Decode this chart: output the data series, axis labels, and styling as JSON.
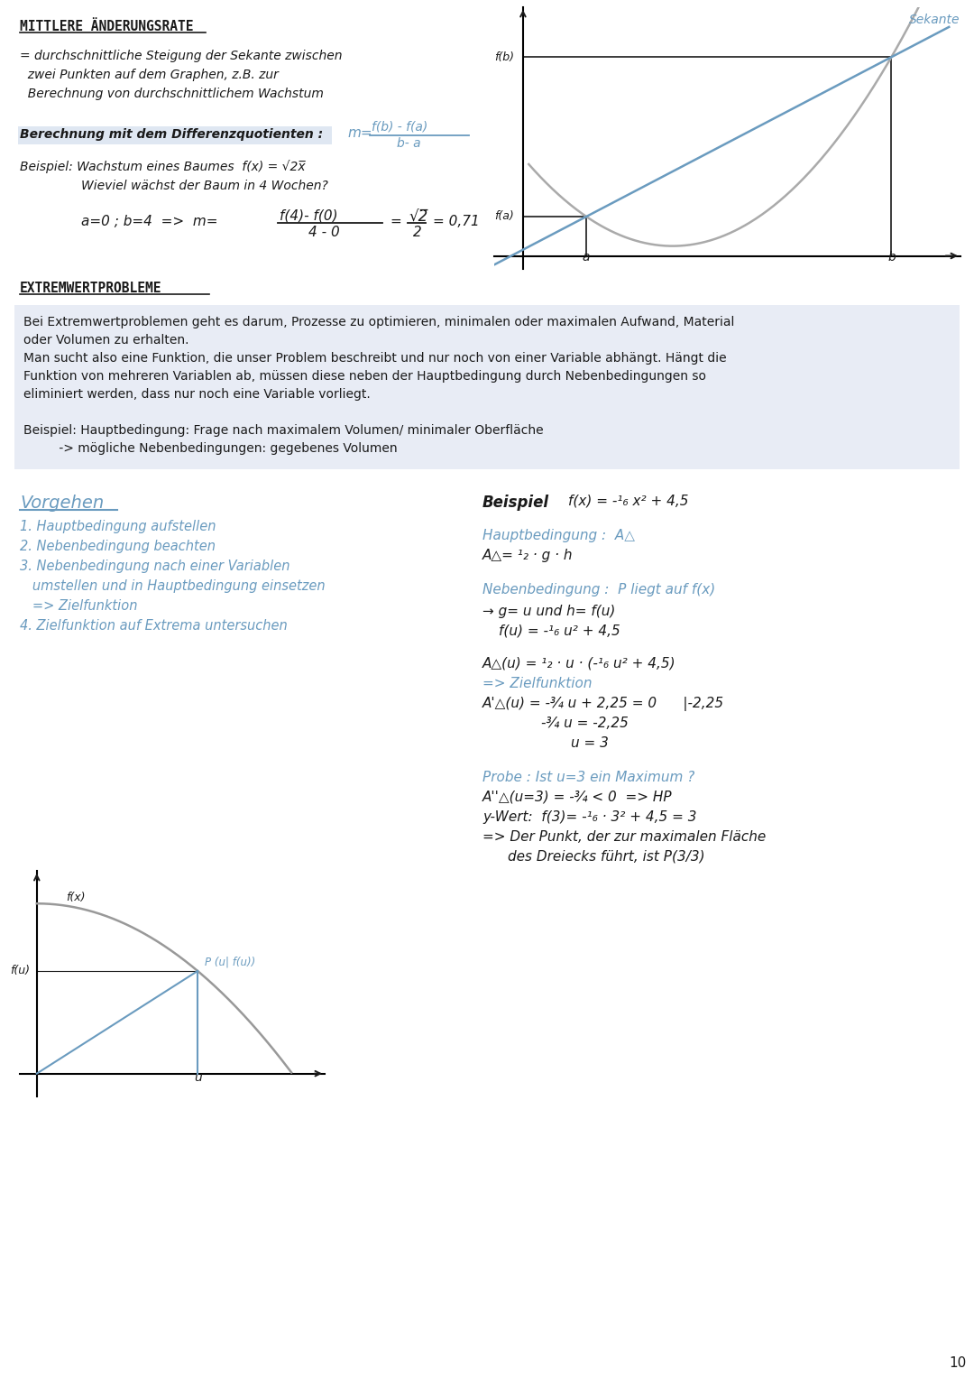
{
  "bg_color": "#ffffff",
  "page_num": "10",
  "hw_color": "#6a9bbf",
  "bk_color": "#1a1a1a",
  "gray_color": "#888888",
  "box_color": "#e8ecf5",
  "sec1_title": "MITTLERE ÄNDERUNGSRATE",
  "sec1_body": [
    "= durchschnittliche Steigung der Sekante zwischen",
    "  zwei Punkten auf dem Graphen, z.B. zur",
    "  Berechnung von durchschnittlichem Wachstum"
  ],
  "sec1_highlight": "Berechnung mit dem Differenzquotienten :",
  "sec2_title": "EXTREMWERTPROBLEME",
  "sec2_box": [
    "Bei Extremwertproblemen geht es darum, Prozesse zu optimieren, minimalen oder maximalen Aufwand, Material",
    "oder Volumen zu erhalten.",
    "Man sucht also eine Funktion, die unser Problem beschreibt und nur noch von einer Variable abhängt. Hängt die",
    "Funktion von mehreren Variablen ab, müssen diese neben der Hauptbedingung durch Nebenbedingungen so",
    "eliminiert werden, dass nur noch eine Variable vorliegt.",
    "",
    "Beispiel: Hauptbedingung: Frage nach maximalem Volumen/ minimaler Oberfläche",
    "         -> mögliche Nebenbedingungen: gegebenes Volumen"
  ],
  "vorgehen_items": [
    "1. Hauptbedingung aufstellen",
    "2. Nebenbedingung beachten",
    "3. Nebenbedingung nach einer Variablen",
    "   umstellen und in Hauptbedingung einsetzen",
    "   => Zielfunktion",
    "4. Zielfunktion auf Extrema untersuchen"
  ]
}
